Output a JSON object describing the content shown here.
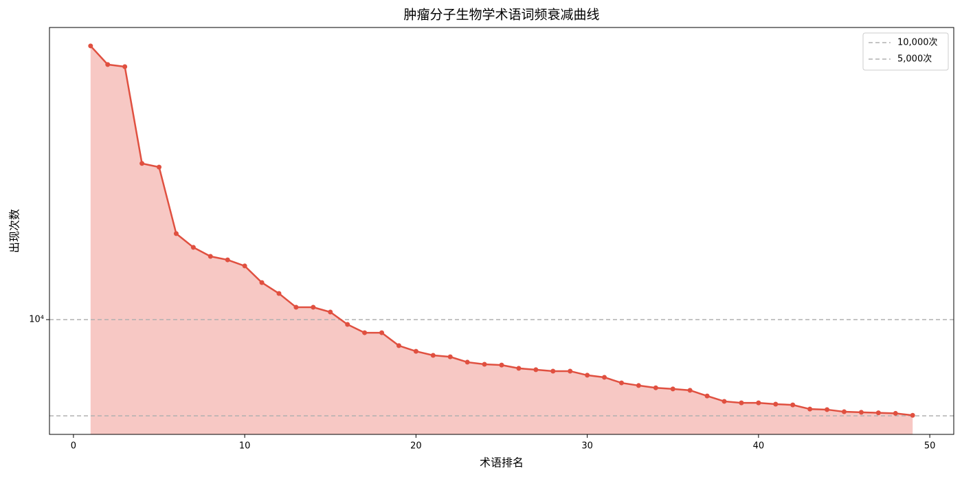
{
  "chart_data": {
    "type": "line",
    "title": "肿瘤分子生物学术语词频衰减曲线",
    "xlabel": "术语排名",
    "ylabel": "出现次数",
    "x": [
      1,
      2,
      3,
      4,
      5,
      6,
      7,
      8,
      9,
      10,
      11,
      12,
      13,
      14,
      15,
      16,
      17,
      18,
      19,
      20,
      21,
      22,
      23,
      24,
      25,
      26,
      27,
      28,
      29,
      30,
      31,
      32,
      33,
      34,
      35,
      36,
      37,
      38,
      39,
      40,
      41,
      42,
      43,
      44,
      45,
      46,
      47,
      48,
      49
    ],
    "values": [
      71800,
      62800,
      61850,
      30800,
      30000,
      18580,
      16830,
      15770,
      15380,
      14720,
      13060,
      12070,
      10930,
      10930,
      10560,
      9660,
      9100,
      9100,
      8290,
      7960,
      7730,
      7650,
      7360,
      7250,
      7210,
      7040,
      6970,
      6900,
      6900,
      6700,
      6600,
      6340,
      6220,
      6120,
      6070,
      6010,
      5770,
      5550,
      5490,
      5490,
      5440,
      5410,
      5250,
      5230,
      5150,
      5130,
      5110,
      5090,
      5020
    ],
    "color": "#e05040",
    "fill_color": "#f4b6b0",
    "xlim": [
      -1.4,
      51.4
    ],
    "xticks": [
      0,
      10,
      20,
      30,
      40,
      50
    ],
    "ylim": [
      4375,
      82000
    ],
    "yticks": [
      {
        "value": 10000,
        "label": "10⁴"
      }
    ],
    "log_y": true,
    "reference_lines": [
      {
        "value": 10000,
        "label": "10,000次",
        "color": "#b0b0b0"
      },
      {
        "value": 5000,
        "label": "5,000次",
        "color": "#b0b0b0"
      }
    ],
    "legend": "upper right"
  }
}
